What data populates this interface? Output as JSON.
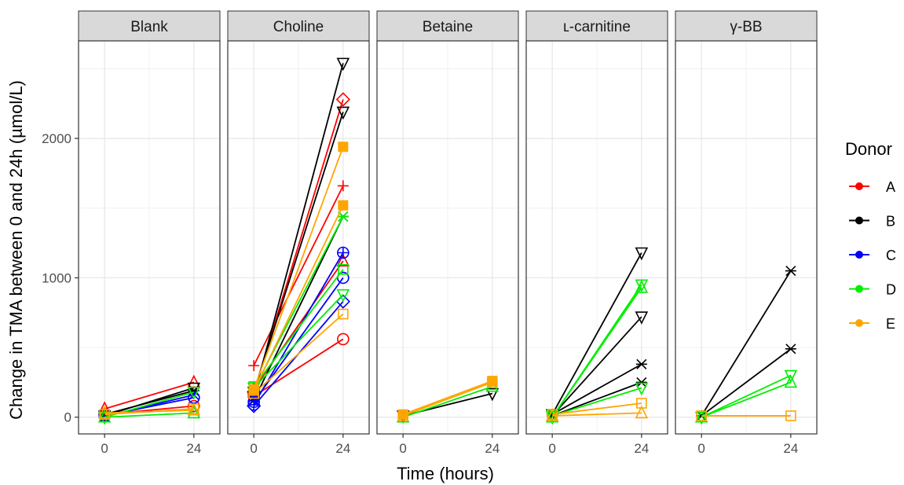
{
  "chart_data": {
    "type": "line",
    "xlabel": "Time (hours)",
    "ylabel": "Change in TMA between 0 and 24h (µmol/L)",
    "x_ticks": [
      0,
      24
    ],
    "y_ticks": [
      0,
      1000,
      2000
    ],
    "xlim": [
      -7,
      31
    ],
    "ylim": [
      -120,
      2700
    ],
    "grid": true,
    "legend": {
      "title": "Donor",
      "position": "right",
      "entries": [
        {
          "name": "A",
          "color": "#ff0000"
        },
        {
          "name": "B",
          "color": "#000000"
        },
        {
          "name": "C",
          "color": "#0000ff"
        },
        {
          "name": "D",
          "color": "#00ee00"
        },
        {
          "name": "E",
          "color": "#ffa500"
        }
      ]
    },
    "panels": [
      {
        "name": "Blank",
        "series": [
          {
            "donor": "A",
            "marker": "triangle-up",
            "values": [
              60,
              250
            ]
          },
          {
            "donor": "A",
            "marker": "circle",
            "values": [
              20,
              80
            ]
          },
          {
            "donor": "B",
            "marker": "triangle-down",
            "values": [
              10,
              210
            ]
          },
          {
            "donor": "B",
            "marker": "asterisk",
            "values": [
              20,
              190
            ]
          },
          {
            "donor": "C",
            "marker": "circle",
            "values": [
              10,
              140
            ]
          },
          {
            "donor": "C",
            "marker": "cross",
            "values": [
              5,
              160
            ]
          },
          {
            "donor": "D",
            "marker": "triangle-down",
            "values": [
              0,
              180
            ]
          },
          {
            "donor": "D",
            "marker": "triangle-up",
            "values": [
              0,
              30
            ]
          },
          {
            "donor": "E",
            "marker": "square",
            "values": [
              20,
              60
            ]
          },
          {
            "donor": "E",
            "marker": "triangle-up",
            "values": [
              30,
              50
            ]
          }
        ]
      },
      {
        "name": "Choline",
        "series": [
          {
            "donor": "A",
            "marker": "diamond",
            "values": [
              180,
              2280
            ]
          },
          {
            "donor": "A",
            "marker": "plus",
            "values": [
              370,
              1660
            ]
          },
          {
            "donor": "A",
            "marker": "circle",
            "values": [
              150,
              560
            ]
          },
          {
            "donor": "A",
            "marker": "triangle-up",
            "values": [
              200,
              1120
            ]
          },
          {
            "donor": "B",
            "marker": "triangle-down",
            "values": [
              150,
              2540
            ]
          },
          {
            "donor": "B",
            "marker": "triangle-down",
            "values": [
              180,
              2190
            ]
          },
          {
            "donor": "B",
            "marker": "asterisk",
            "values": [
              120,
              1440
            ]
          },
          {
            "donor": "C",
            "marker": "crossed-circle",
            "values": [
              90,
              1180
            ]
          },
          {
            "donor": "C",
            "marker": "diamond",
            "values": [
              80,
              830
            ]
          },
          {
            "donor": "C",
            "marker": "circle",
            "values": [
              110,
              1000
            ]
          },
          {
            "donor": "D",
            "marker": "asterisk",
            "values": [
              200,
              1440
            ]
          },
          {
            "donor": "D",
            "marker": "square",
            "values": [
              220,
              1060
            ]
          },
          {
            "donor": "D",
            "marker": "triangle-down",
            "values": [
              210,
              880
            ]
          },
          {
            "donor": "E",
            "marker": "filled-square",
            "values": [
              200,
              1940
            ]
          },
          {
            "donor": "E",
            "marker": "filled-square",
            "values": [
              190,
              1520
            ]
          },
          {
            "donor": "E",
            "marker": "square",
            "values": [
              170,
              740
            ]
          }
        ]
      },
      {
        "name": "Betaine",
        "series": [
          {
            "donor": "B",
            "marker": "triangle-down",
            "values": [
              10,
              170
            ]
          },
          {
            "donor": "D",
            "marker": "triangle-up",
            "values": [
              0,
              220
            ]
          },
          {
            "donor": "E",
            "marker": "filled-square",
            "values": [
              20,
              260
            ]
          },
          {
            "donor": "E",
            "marker": "square",
            "values": [
              10,
              250
            ]
          }
        ]
      },
      {
        "name": "ʟ-carnitine",
        "series": [
          {
            "donor": "B",
            "marker": "triangle-down",
            "values": [
              20,
              1180
            ]
          },
          {
            "donor": "B",
            "marker": "triangle-down",
            "values": [
              10,
              720
            ]
          },
          {
            "donor": "B",
            "marker": "asterisk",
            "values": [
              20,
              380
            ]
          },
          {
            "donor": "B",
            "marker": "asterisk",
            "values": [
              10,
              250
            ]
          },
          {
            "donor": "D",
            "marker": "triangle-down",
            "values": [
              0,
              950
            ]
          },
          {
            "donor": "D",
            "marker": "triangle-up",
            "values": [
              0,
              930
            ]
          },
          {
            "donor": "D",
            "marker": "triangle-down",
            "values": [
              10,
              210
            ]
          },
          {
            "donor": "E",
            "marker": "square",
            "values": [
              20,
              100
            ]
          },
          {
            "donor": "E",
            "marker": "triangle-up",
            "values": [
              10,
              30
            ]
          }
        ]
      },
      {
        "name": "γ-BB",
        "series": [
          {
            "donor": "B",
            "marker": "asterisk",
            "values": [
              10,
              1050
            ]
          },
          {
            "donor": "B",
            "marker": "asterisk",
            "values": [
              10,
              490
            ]
          },
          {
            "donor": "D",
            "marker": "triangle-down",
            "values": [
              0,
              300
            ]
          },
          {
            "donor": "D",
            "marker": "triangle-up",
            "values": [
              0,
              250
            ]
          },
          {
            "donor": "E",
            "marker": "square",
            "values": [
              10,
              10
            ]
          }
        ]
      }
    ]
  }
}
